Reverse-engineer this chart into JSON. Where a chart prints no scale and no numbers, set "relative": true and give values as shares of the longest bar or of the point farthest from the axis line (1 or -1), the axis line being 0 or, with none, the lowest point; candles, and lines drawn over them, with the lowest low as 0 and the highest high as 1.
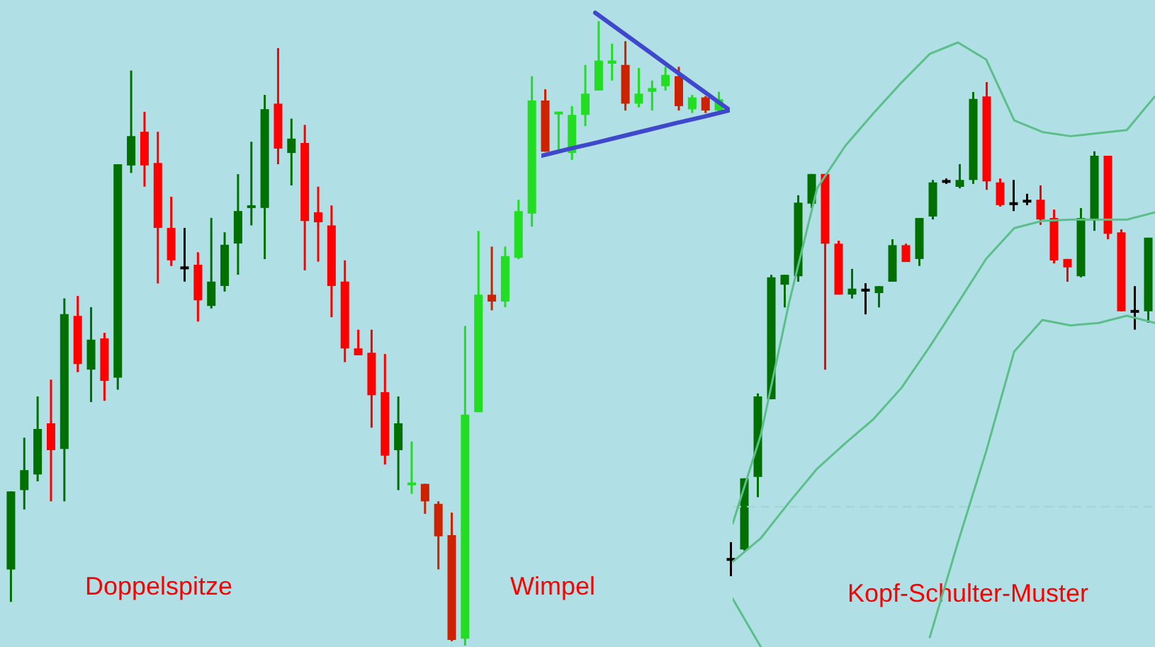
{
  "chart_data": [
    {
      "type": "candlestick",
      "relative": true,
      "categories": [
        null,
        null,
        null,
        null,
        null,
        null,
        null,
        null,
        null,
        null,
        null,
        null,
        null,
        null,
        null,
        null,
        null,
        null,
        null,
        null,
        null,
        null,
        null,
        null,
        null,
        null,
        null,
        null,
        null,
        null,
        null,
        null,
        null,
        null,
        null,
        null,
        null,
        null,
        null,
        null,
        null,
        null,
        null,
        null,
        null,
        null,
        null,
        null,
        null,
        null,
        null,
        null,
        null,
        null
      ],
      "ohlc": [
        [
          0.122,
          0.247,
          0.07,
          0.247
        ],
        [
          0.249,
          0.333,
          0.218,
          0.281
        ],
        [
          0.274,
          0.399,
          0.263,
          0.347
        ],
        [
          0.356,
          0.426,
          0.231,
          0.313
        ],
        [
          0.315,
          0.556,
          0.231,
          0.531
        ],
        [
          0.528,
          0.56,
          0.438,
          0.451
        ],
        [
          0.442,
          0.542,
          0.39,
          0.49
        ],
        [
          0.492,
          0.501,
          0.392,
          0.424
        ],
        [
          0.429,
          0.771,
          0.41,
          0.771
        ],
        [
          0.769,
          0.921,
          0.757,
          0.816
        ],
        [
          0.823,
          0.855,
          0.735,
          0.769
        ],
        [
          0.773,
          0.823,
          0.58,
          0.669
        ],
        [
          0.669,
          0.719,
          0.608,
          0.617
        ],
        [
          0.605,
          0.669,
          0.583,
          0.605
        ],
        [
          0.61,
          0.63,
          0.519,
          0.553
        ],
        [
          0.544,
          0.685,
          0.54,
          0.583
        ],
        [
          0.576,
          0.662,
          0.567,
          0.642
        ],
        [
          0.644,
          0.755,
          0.594,
          0.696
        ],
        [
          0.703,
          0.807,
          0.673,
          0.703
        ],
        [
          0.701,
          0.882,
          0.619,
          0.859
        ],
        [
          0.868,
          0.957,
          0.771,
          0.796
        ],
        [
          0.789,
          0.844,
          0.737,
          0.812
        ],
        [
          0.805,
          0.834,
          0.601,
          0.68
        ],
        [
          0.694,
          0.735,
          0.615,
          0.678
        ],
        [
          0.673,
          0.705,
          0.526,
          0.576
        ],
        [
          0.583,
          0.617,
          0.454,
          0.476
        ],
        [
          0.476,
          0.506,
          0.465,
          0.465
        ],
        [
          0.469,
          0.506,
          0.349,
          0.401
        ],
        [
          0.406,
          0.467,
          0.29,
          0.304
        ],
        [
          0.313,
          0.399,
          0.249,
          0.356
        ],
        [
          0.259,
          0.327,
          0.243,
          0.259
        ],
        [
          0.259,
          0.259,
          0.211,
          0.231
        ],
        [
          0.227,
          0.231,
          0.122,
          0.175
        ],
        [
          0.177,
          0.213,
          0.007,
          0.009
        ],
        [
          0.011,
          0.512,
          0,
          0.37
        ],
        [
          0.374,
          0.664,
          0.374,
          0.562
        ],
        [
          0.562,
          0.639,
          0.537,
          0.551
        ],
        [
          0.551,
          0.639,
          0.542,
          0.624
        ],
        [
          0.621,
          0.714,
          0.619,
          0.696
        ],
        [
          0.692,
          0.912,
          0.671,
          0.873
        ],
        [
          0.873,
          0.891,
          0.791,
          0.791
        ],
        [
          0.853,
          0.855,
          0.789,
          0.853
        ],
        [
          0.789,
          0.864,
          0.778,
          0.85
        ],
        [
          0.85,
          0.93,
          0.832,
          0.884
        ],
        [
          0.889,
          1,
          0.889,
          0.937
        ],
        [
          0.932,
          0.964,
          0.905,
          0.937
        ],
        [
          0.93,
          0.968,
          0.857,
          0.868
        ],
        [
          0.868,
          0.925,
          0.862,
          0.884
        ],
        [
          0.887,
          0.905,
          0.857,
          0.893
        ],
        [
          0.896,
          0.927,
          0.889,
          0.914
        ],
        [
          0.912,
          0.927,
          0.857,
          0.864
        ],
        [
          0.859,
          0.882,
          0.853,
          0.878
        ],
        [
          0.878,
          0.88,
          0.853,
          0.857
        ],
        [
          0.857,
          0.887,
          0.853,
          0.875
        ]
      ],
      "colors": [
        "#007000",
        "#007000",
        "#007000",
        "#ff0000",
        "#007000",
        "#ff0000",
        "#007000",
        "#ff0000",
        "#007000",
        "#007000",
        "#ff0000",
        "#ff0000",
        "#ff0000",
        "#000000",
        "#ff0000",
        "#007000",
        "#007000",
        "#007000",
        "#007000",
        "#007000",
        "#ff0000",
        "#007000",
        "#ff0000",
        "#ff0000",
        "#ff0000",
        "#ff0000",
        "#ff0000",
        "#ff0000",
        "#ff0000",
        "#007000",
        "#22dd22",
        "#cc2200",
        "#cc2200",
        "#cc2200",
        "#22dd22",
        "#22dd22",
        "#cc2200",
        "#22dd22",
        "#22dd22",
        "#22dd22",
        "#cc2200",
        "#22dd22",
        "#22dd22",
        "#22dd22",
        "#22dd22",
        "#22dd22",
        "#cc2200",
        "#22dd22",
        "#22dd22",
        "#22dd22",
        "#cc2200",
        "#22dd22",
        "#cc2200",
        "#22dd22"
      ],
      "annotations": [
        "Doppelspitze",
        "Wimpel"
      ]
    },
    {
      "type": "line",
      "relative": true,
      "categories": [
        null,
        null,
        null,
        null,
        null,
        null,
        null,
        null
      ],
      "series": [
        {
          "color": "#3f48cc",
          "values": [
            null,
            null,
            1,
            0.864,
            0.728,
            0.59,
            0.454,
            0.318
          ]
        },
        {
          "color": "#3f48cc",
          "values": [
            0,
            0.046,
            0.09,
            0.136,
            0.182,
            0.228,
            0.272,
            0.318
          ]
        }
      ]
    },
    {
      "type": "candlestick",
      "relative": true,
      "categories": [
        null,
        null,
        null,
        null,
        null,
        null,
        null,
        null,
        null,
        null,
        null,
        null,
        null,
        null,
        null,
        null,
        null,
        null,
        null,
        null,
        null,
        null,
        null,
        null,
        null,
        null,
        null,
        null,
        null,
        null,
        null,
        null
      ],
      "ohlc": [
        [
          0.034,
          0.069,
          0,
          0.034
        ],
        [
          0.054,
          0.198,
          0.052,
          0.198
        ],
        [
          0.201,
          0.37,
          0.16,
          0.364
        ],
        [
          0.358,
          0.61,
          0.358,
          0.605
        ],
        [
          0.59,
          0.61,
          0.544,
          0.61
        ],
        [
          0.607,
          0.771,
          0.596,
          0.756
        ],
        [
          0.754,
          0.814,
          0.745,
          0.814
        ],
        [
          0.814,
          0.814,
          0.418,
          0.673
        ],
        [
          0.673,
          0.679,
          0.57,
          0.57
        ],
        [
          0.57,
          0.622,
          0.562,
          0.582
        ],
        [
          0.579,
          0.593,
          0.53,
          0.579
        ],
        [
          0.573,
          0.587,
          0.544,
          0.587
        ],
        [
          0.596,
          0.682,
          0.596,
          0.67
        ],
        [
          0.67,
          0.673,
          0.636,
          0.636
        ],
        [
          0.642,
          0.725,
          0.628,
          0.725
        ],
        [
          0.728,
          0.802,
          0.722,
          0.797
        ],
        [
          0.799,
          0.805,
          0.794,
          0.799
        ],
        [
          0.788,
          0.834,
          0.785,
          0.802
        ],
        [
          0.802,
          0.98,
          0.794,
          0.966
        ],
        [
          0.971,
          1,
          0.782,
          0.799
        ],
        [
          0.797,
          0.805,
          0.748,
          0.751
        ],
        [
          0.754,
          0.802,
          0.739,
          0.754
        ],
        [
          0.759,
          0.774,
          0.751,
          0.759
        ],
        [
          0.762,
          0.791,
          0.711,
          0.722
        ],
        [
          0.725,
          0.742,
          0.633,
          0.639
        ],
        [
          0.642,
          0.642,
          0.596,
          0.625
        ],
        [
          0.607,
          0.745,
          0.605,
          0.725
        ],
        [
          0.722,
          0.86,
          0.699,
          0.851
        ],
        [
          0.851,
          0.851,
          0.682,
          0.693
        ],
        [
          0.696,
          0.702,
          0.536,
          0.536
        ],
        [
          0.536,
          0.587,
          0.499,
          0.536
        ],
        [
          0.536,
          0.685,
          0.513,
          0.685
        ]
      ],
      "colors": [
        "#000000",
        "#007000",
        "#007000",
        "#007000",
        "#007000",
        "#007000",
        "#007000",
        "#ff0000",
        "#ff0000",
        "#007000",
        "#000000",
        "#007000",
        "#007000",
        "#ff0000",
        "#007000",
        "#007000",
        "#000000",
        "#007000",
        "#007000",
        "#ff0000",
        "#ff0000",
        "#000000",
        "#000000",
        "#ff0000",
        "#ff0000",
        "#ff0000",
        "#007000",
        "#007000",
        "#ff0000",
        "#ff0000",
        "#000000",
        "#007000"
      ],
      "annotations": [
        "Kopf-Schulter-Muster"
      ]
    },
    {
      "type": "line",
      "relative": true,
      "categories": [
        null,
        null,
        null,
        null,
        null,
        null,
        null,
        null,
        null,
        null,
        null,
        null,
        null,
        null,
        null,
        null
      ],
      "series": [
        {
          "color": "#5cbf8a",
          "values": [
            0.204,
            0.351,
            0.569,
            0.759,
            0.829,
            0.883,
            0.934,
            0.981,
            1,
            0.972,
            0.871,
            0.852,
            0.845,
            0.85,
            0.855,
            0.911
          ]
        },
        {
          "color": "#5cbf8a",
          "values": [
            0.141,
            0.18,
            0.239,
            0.295,
            0.337,
            0.377,
            0.429,
            0.497,
            0.569,
            0.642,
            0.693,
            0.705,
            0.707,
            0.707,
            0.707,
            0.719
          ]
        },
        {
          "color": "#5cbf8a",
          "values": [
            0.08,
            0,
            null,
            null,
            null,
            null,
            null,
            0.016,
            0.173,
            0.323,
            0.489,
            0.541,
            0.532,
            0.536,
            0.548,
            0.536
          ]
        }
      ],
      "ref_lines": [
        {
          "axis": "y",
          "value": 0.232,
          "color": "#a0d8cc",
          "line_style": "dashed"
        }
      ]
    }
  ]
}
